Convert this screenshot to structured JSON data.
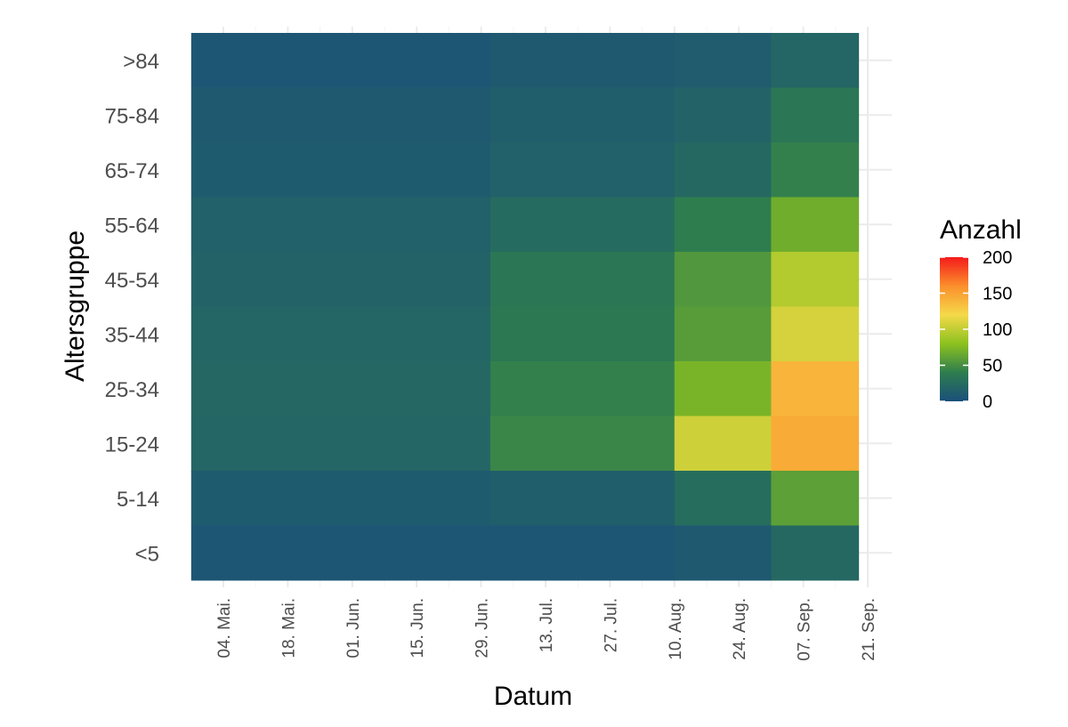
{
  "chart_data": {
    "type": "heatmap",
    "xlabel": "Datum",
    "ylabel": "Altersgruppe",
    "legend": {
      "title": "Anzahl",
      "ticks": [
        0,
        50,
        100,
        150,
        200
      ],
      "range": [
        0,
        200
      ],
      "position": "right"
    },
    "x_range": [
      "2020-04-27",
      "2020-09-19"
    ],
    "x_ticks": [
      "04. Mai.",
      "18. Mai.",
      "01. Jun.",
      "15. Jun.",
      "29. Jun.",
      "13. Jul.",
      "27. Jul.",
      "10. Aug.",
      "24. Aug.",
      "07. Sep.",
      "21. Sep."
    ],
    "grid": true,
    "colorscale": [
      "#1a4f7a",
      "#2e7d4f",
      "#8cc21e",
      "#f5d94a",
      "#fb8f2c",
      "#f41b1b"
    ],
    "missing_color": "#808080",
    "rows": [
      {
        "name": ">84",
        "segments": [
          {
            "from": "2020-04-27",
            "to": "2020-07-01",
            "value": 6
          },
          {
            "from": "2020-07-01",
            "to": "2020-08-10",
            "value": 9
          },
          {
            "from": "2020-08-10",
            "to": "2020-08-31",
            "value": 11
          },
          {
            "from": "2020-08-31",
            "to": "2020-09-19",
            "value": 20
          }
        ]
      },
      {
        "name": "75-84",
        "segments": [
          {
            "from": "2020-04-27",
            "to": "2020-07-01",
            "value": 9
          },
          {
            "from": "2020-07-01",
            "to": "2020-08-10",
            "value": 13
          },
          {
            "from": "2020-08-10",
            "to": "2020-08-31",
            "value": 17
          },
          {
            "from": "2020-08-31",
            "to": "2020-09-19",
            "value": 34
          }
        ]
      },
      {
        "name": "65-74",
        "segments": [
          {
            "from": "2020-04-27",
            "to": "2020-07-01",
            "value": 10
          },
          {
            "from": "2020-07-01",
            "to": "2020-08-10",
            "value": 16
          },
          {
            "from": "2020-08-10",
            "to": "2020-08-31",
            "value": 22
          },
          {
            "from": "2020-08-31",
            "to": "2020-09-19",
            "value": 42
          }
        ]
      },
      {
        "name": "55-64",
        "segments": [
          {
            "from": "2020-04-27",
            "to": "2020-07-01",
            "value": 15
          },
          {
            "from": "2020-07-01",
            "to": "2020-08-10",
            "value": 24
          },
          {
            "from": "2020-08-10",
            "to": "2020-08-31",
            "value": 40
          },
          {
            "from": "2020-08-31",
            "to": "2020-09-19",
            "value": 68
          }
        ]
      },
      {
        "name": "45-54",
        "segments": [
          {
            "from": "2020-04-27",
            "to": "2020-07-01",
            "value": 17
          },
          {
            "from": "2020-07-01",
            "to": "2020-08-10",
            "value": 34
          },
          {
            "from": "2020-08-10",
            "to": "2020-08-31",
            "value": 55
          },
          {
            "from": "2020-08-31",
            "to": "2020-09-19",
            "value": 95
          }
        ]
      },
      {
        "name": "35-44",
        "segments": [
          {
            "from": "2020-04-27",
            "to": "2020-07-01",
            "value": 19
          },
          {
            "from": "2020-07-01",
            "to": "2020-08-10",
            "value": 36
          },
          {
            "from": "2020-08-10",
            "to": "2020-08-31",
            "value": 58
          },
          {
            "from": "2020-08-31",
            "to": "2020-09-19",
            "value": 108
          }
        ]
      },
      {
        "name": "25-34",
        "segments": [
          {
            "from": "2020-04-27",
            "to": "2020-07-01",
            "value": 21
          },
          {
            "from": "2020-07-01",
            "to": "2020-08-10",
            "value": 42
          },
          {
            "from": "2020-08-10",
            "to": "2020-08-31",
            "value": 72
          },
          {
            "from": "2020-08-31",
            "to": "2020-09-19",
            "value": 140
          }
        ]
      },
      {
        "name": "15-24",
        "segments": [
          {
            "from": "2020-04-27",
            "to": "2020-07-01",
            "value": 20
          },
          {
            "from": "2020-07-01",
            "to": "2020-08-10",
            "value": 45
          },
          {
            "from": "2020-08-10",
            "to": "2020-08-31",
            "value": 105
          },
          {
            "from": "2020-08-31",
            "to": "2020-09-19",
            "value": 145
          }
        ]
      },
      {
        "name": "5-14",
        "segments": [
          {
            "from": "2020-04-27",
            "to": "2020-07-01",
            "value": 10
          },
          {
            "from": "2020-07-01",
            "to": "2020-08-10",
            "value": 13
          },
          {
            "from": "2020-08-10",
            "to": "2020-08-31",
            "value": 26
          },
          {
            "from": "2020-08-31",
            "to": "2020-09-19",
            "value": 60
          }
        ]
      },
      {
        "name": "<5",
        "segments": [
          {
            "from": "2020-04-27",
            "to": "2020-07-01",
            "value": 6
          },
          {
            "from": "2020-07-01",
            "to": "2020-08-10",
            "value": 6
          },
          {
            "from": "2020-08-10",
            "to": "2020-08-31",
            "value": 9
          },
          {
            "from": "2020-08-31",
            "to": "2020-09-19",
            "value": 22
          }
        ]
      }
    ]
  }
}
